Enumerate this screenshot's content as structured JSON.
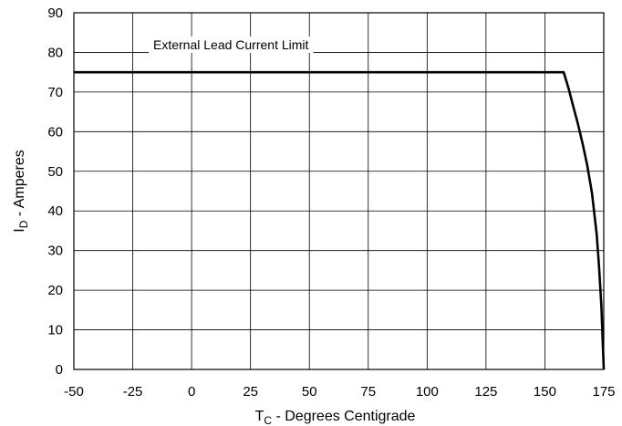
{
  "chart_data": {
    "type": "line",
    "xlabel": {
      "main": "T",
      "sub": "C",
      "rest": " - Degrees Centigrade"
    },
    "ylabel": {
      "main": "I",
      "sub": "D",
      "rest": " - Amperes"
    },
    "xlim": [
      -50,
      175
    ],
    "ylim": [
      0,
      90
    ],
    "xticks": [
      -50,
      -25,
      0,
      25,
      50,
      75,
      100,
      125,
      150,
      175
    ],
    "yticks": [
      0,
      10,
      20,
      30,
      40,
      50,
      60,
      70,
      80,
      90
    ],
    "grid": true,
    "annotation": "External Lead Current Limit",
    "series": [
      {
        "x": [
          -50,
          158,
          160,
          162,
          164,
          166,
          168,
          170,
          172,
          173,
          174,
          175
        ],
        "y": [
          75,
          75,
          71,
          66.5,
          62,
          57,
          51.5,
          44.5,
          34,
          26,
          16,
          0
        ]
      }
    ]
  }
}
